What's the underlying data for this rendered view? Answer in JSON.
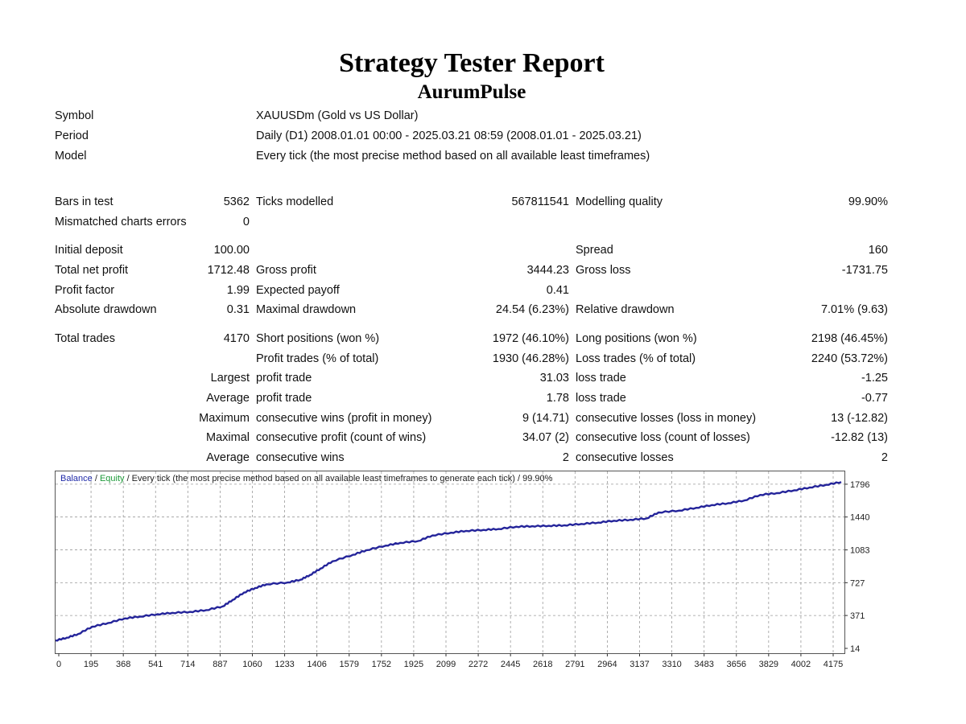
{
  "header": {
    "title": "Strategy Tester Report",
    "subtitle": "AurumPulse"
  },
  "info": {
    "symbol_label": "Symbol",
    "symbol_value": "XAUUSDm (Gold vs US Dollar)",
    "period_label": "Period",
    "period_value": "Daily (D1) 2008.01.01 00:00 - 2025.03.21 08:59 (2008.01.01 - 2025.03.21)",
    "model_label": "Model",
    "model_value": "Every tick (the most precise method based on all available least timeframes)"
  },
  "stats": {
    "bars_label": "Bars in test",
    "bars_value": "5362",
    "ticks_label": "Ticks modelled",
    "ticks_value": "567811541",
    "quality_label": "Modelling quality",
    "quality_value": "99.90%",
    "mismatch_label": "Mismatched charts errors",
    "mismatch_value": "0",
    "deposit_label": "Initial deposit",
    "deposit_value": "100.00",
    "spread_label": "Spread",
    "spread_value": "160",
    "netprofit_label": "Total net profit",
    "netprofit_value": "1712.48",
    "grossprofit_label": "Gross profit",
    "grossprofit_value": "3444.23",
    "grossloss_label": "Gross loss",
    "grossloss_value": "-1731.75",
    "pf_label": "Profit factor",
    "pf_value": "1.99",
    "payoff_label": "Expected payoff",
    "payoff_value": "0.41",
    "absdd_label": "Absolute drawdown",
    "absdd_value": "0.31",
    "maxdd_label": "Maximal drawdown",
    "maxdd_value": "24.54 (6.23%)",
    "reldd_label": "Relative drawdown",
    "reldd_value": "7.01% (9.63)",
    "trades_label": "Total trades",
    "trades_value": "4170",
    "short_label": "Short positions (won %)",
    "short_value": "1972 (46.10%)",
    "long_label": "Long positions (won %)",
    "long_value": "2198 (46.45%)",
    "profittrades_label": "Profit trades (% of total)",
    "profittrades_value": "1930 (46.28%)",
    "losstrades_label": "Loss trades (% of total)",
    "losstrades_value": "2240 (53.72%)",
    "largest_label": "Largest",
    "largest_profit_label": "profit trade",
    "largest_profit_value": "31.03",
    "largest_loss_label": "loss trade",
    "largest_loss_value": "-1.25",
    "average_label": "Average",
    "average_profit_label": "profit trade",
    "average_profit_value": "1.78",
    "average_loss_label": "loss trade",
    "average_loss_value": "-0.77",
    "maximum_label": "Maximum",
    "max_wins_label": "consecutive wins (profit in money)",
    "max_wins_value": "9 (14.71)",
    "max_losses_label": "consecutive losses (loss in money)",
    "max_losses_value": "13 (-12.82)",
    "maximal_label": "Maximal",
    "maximal_profit_label": "consecutive profit (count of wins)",
    "maximal_profit_value": "34.07 (2)",
    "maximal_loss_label": "consecutive loss (count of losses)",
    "maximal_loss_value": "-12.82 (13)",
    "avgcons_label": "Average",
    "avg_wins_label": "consecutive wins",
    "avg_wins_value": "2",
    "avg_losses_label": "consecutive losses",
    "avg_losses_value": "2"
  },
  "legend": {
    "balance": "Balance",
    "sep1": " / ",
    "equity": "Equity",
    "rest": " / Every tick (the most precise method based on all available least timeframes to generate each tick) / 99.90%"
  },
  "chart_data": {
    "type": "line",
    "colors": {
      "balance": "#24249a",
      "equity": "#1e9a3a",
      "grid": "#9a9a9a"
    },
    "x_ticks": [
      "0",
      "195",
      "368",
      "541",
      "714",
      "887",
      "1060",
      "1233",
      "1406",
      "1579",
      "1752",
      "1925",
      "2099",
      "2272",
      "2445",
      "2618",
      "2791",
      "2964",
      "3137",
      "3310",
      "3483",
      "3656",
      "3829",
      "4002",
      "4175"
    ],
    "y_ticks": [
      "14",
      "371",
      "727",
      "1083",
      "1440",
      "1796"
    ],
    "xlim": [
      0,
      4170
    ],
    "ylim": [
      14,
      1900
    ],
    "grid": true,
    "series": [
      {
        "name": "Balance",
        "x": [
          0,
          60,
          120,
          195,
          280,
          368,
          450,
          541,
          620,
          714,
          800,
          887,
          940,
          1000,
          1060,
          1120,
          1233,
          1300,
          1350,
          1406,
          1470,
          1579,
          1650,
          1752,
          1830,
          1925,
          2000,
          2099,
          2180,
          2272,
          2350,
          2445,
          2530,
          2618,
          2700,
          2791,
          2880,
          2964,
          3050,
          3137,
          3200,
          3310,
          3400,
          3483,
          3570,
          3656,
          3740,
          3829,
          3920,
          4002,
          4090,
          4170
        ],
        "values": [
          100,
          130,
          170,
          250,
          290,
          340,
          360,
          385,
          400,
          410,
          430,
          470,
          540,
          620,
          670,
          710,
          730,
          760,
          810,
          880,
          960,
          1030,
          1080,
          1130,
          1160,
          1180,
          1240,
          1270,
          1290,
          1300,
          1310,
          1335,
          1340,
          1345,
          1350,
          1365,
          1380,
          1400,
          1410,
          1425,
          1490,
          1510,
          1540,
          1570,
          1590,
          1620,
          1680,
          1700,
          1730,
          1760,
          1790,
          1820
        ]
      }
    ]
  }
}
